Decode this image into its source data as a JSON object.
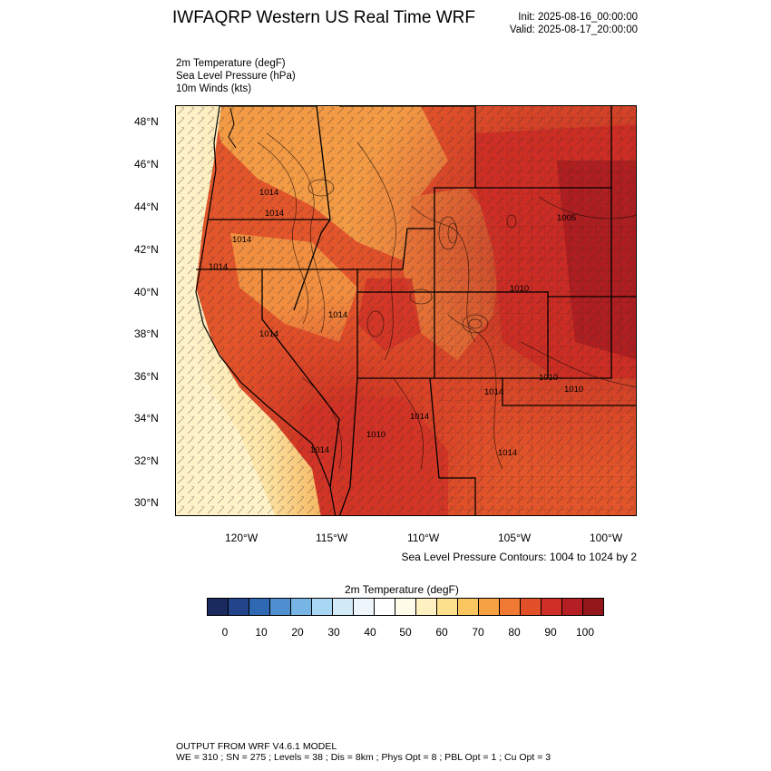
{
  "header": {
    "title": "IWFAQRP Western US Real Time WRF",
    "init": "Init: 2025-08-16_00:00:00",
    "valid": "Valid: 2025-08-17_20:00:00"
  },
  "fields": [
    "2m Temperature   (degF)",
    "Sea Level Pressure   (hPa)",
    "10m Winds   (kts)"
  ],
  "map": {
    "lat_labels": [
      "48°N",
      "46°N",
      "44°N",
      "42°N",
      "40°N",
      "38°N",
      "36°N",
      "34°N",
      "32°N",
      "30°N"
    ],
    "lon_labels": [
      "120°W",
      "115°W",
      "110°W",
      "105°W",
      "100°W"
    ],
    "isobar_labels": [
      "1014",
      "1014",
      "1014",
      "1014",
      "1014",
      "1005",
      "1010",
      "1014",
      "1014",
      "1010",
      "1010",
      "1014",
      "1010",
      "1014",
      "1014"
    ],
    "contour_note": "Sea Level Pressure Contours: 1004 to 1024 by 2"
  },
  "colorbar": {
    "title": "2m Temperature  (degF)",
    "labels": [
      "0",
      "10",
      "20",
      "30",
      "40",
      "50",
      "60",
      "70",
      "80",
      "90",
      "100"
    ],
    "colors": [
      "#1a2a5e",
      "#22448a",
      "#2f68b3",
      "#4f8fcf",
      "#77b6e4",
      "#a9d6f2",
      "#d3ebf8",
      "#eef6fb",
      "#ffffff",
      "#fffbe9",
      "#fef0c0",
      "#fde08e",
      "#fbc560",
      "#f7a242",
      "#f07a33",
      "#e2502a",
      "#cf2f26",
      "#b51e22",
      "#93161a"
    ]
  },
  "footer": {
    "line1": "OUTPUT FROM WRF V4.6.1 MODEL",
    "line2": "WE = 310 ; SN = 275 ; Levels = 38 ; Dis = 8km ; Phys Opt = 8 ; PBL Opt = 1 ; Cu Opt = 3"
  }
}
